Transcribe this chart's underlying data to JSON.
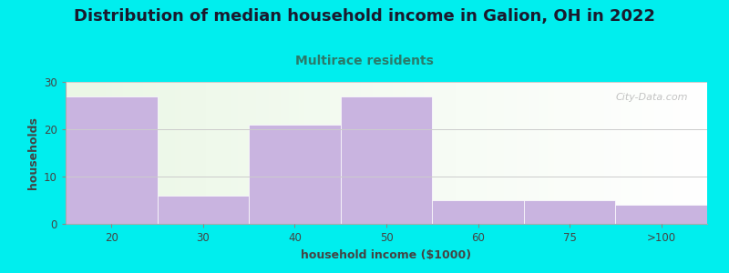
{
  "title": "Distribution of median household income in Galion, OH in 2022",
  "subtitle": "Multirace residents",
  "xlabel": "household income ($1000)",
  "ylabel": "households",
  "categories": [
    "20",
    "30",
    "40",
    "50",
    "60",
    "75",
    ">100"
  ],
  "values": [
    27,
    6,
    21,
    27,
    5,
    5,
    4
  ],
  "ylim": [
    0,
    30
  ],
  "yticks": [
    0,
    10,
    20,
    30
  ],
  "bar_color": "#c9b4e0",
  "bar_edge_color": "#c9b4e0",
  "background_color": "#00eeee",
  "title_color": "#1a1a2e",
  "subtitle_color": "#2a7a6a",
  "axis_label_color": "#444444",
  "tick_color": "#444444",
  "watermark_text": "City-Data.com",
  "title_fontsize": 13,
  "subtitle_fontsize": 10,
  "label_fontsize": 9,
  "tick_fontsize": 8.5
}
